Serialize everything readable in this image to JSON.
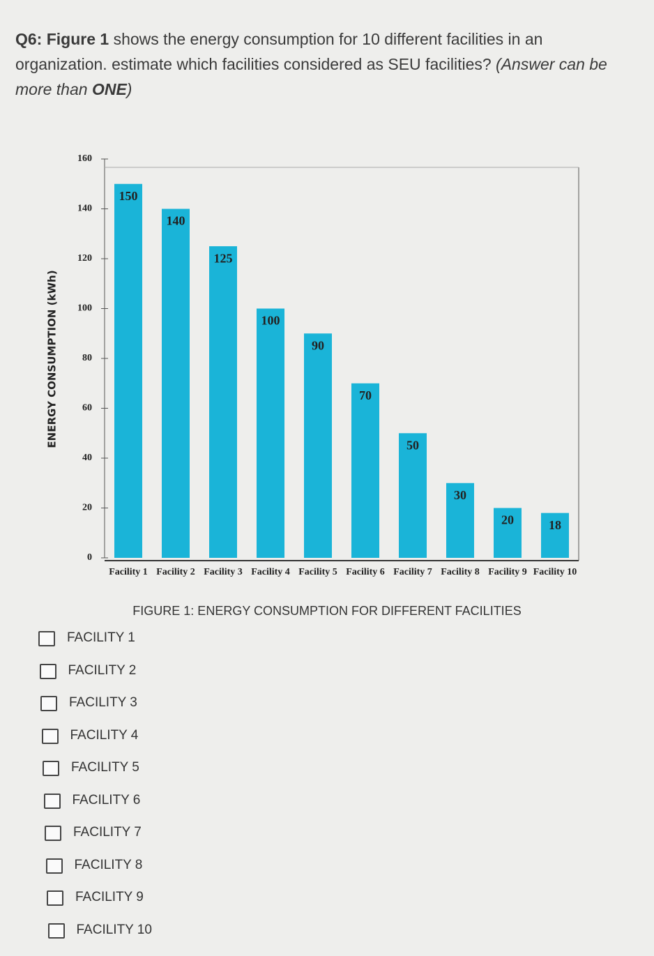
{
  "question": [
    "Q6: ",
    "Figure 1",
    " shows the energy consumption for 10 different facilities in an organization. estimate which facilities considered as SEU facilities? ",
    "(Answer can be more than ",
    "ONE",
    ")"
  ],
  "chart_data": {
    "type": "bar",
    "y_label": "ENERGY CONSUMPTION (kWh)",
    "caption": "FIGURE 1: ENERGY CONSUMPTION FOR DIFFERENT FACILITIES",
    "categories": [
      "Facility 1",
      "Facility 2",
      "Facility 3",
      "Facility 4",
      "Facility 5",
      "Facility 6",
      "Facility 7",
      "Facility 8",
      "Facility 9",
      "Facility 10"
    ],
    "values": [
      150,
      140,
      125,
      100,
      90,
      70,
      50,
      30,
      20,
      18
    ],
    "color": "#1ab4d8",
    "ylim": [
      0,
      160
    ],
    "yticks": [
      0,
      20,
      40,
      60,
      80,
      100,
      120,
      140,
      160
    ]
  },
  "options": [
    "FACILITY 1",
    "FACILITY 2",
    "FACILITY 3",
    "FACILITY 4",
    "FACILITY 5",
    "FACILITY 6",
    "FACILITY 7",
    "FACILITY 8",
    "FACILITY 9",
    "FACILITY 10"
  ]
}
